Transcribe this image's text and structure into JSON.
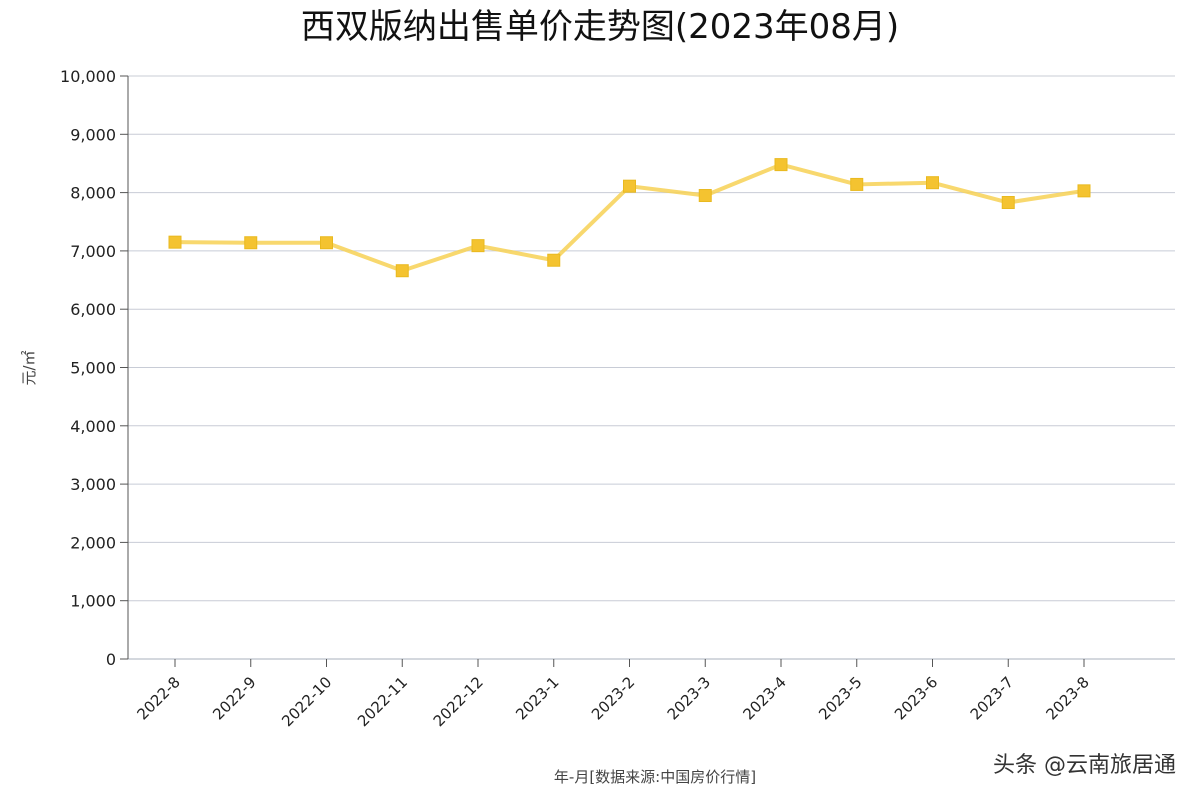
{
  "chart_data": {
    "type": "line",
    "title": "西双版纳出售单价走势图(2023年08月)",
    "xlabel": "年-月[数据来源:中国房价行情]",
    "ylabel": "元/㎡",
    "categories": [
      "2022-8",
      "2022-9",
      "2022-10",
      "2022-11",
      "2022-12",
      "2023-1",
      "2023-2",
      "2023-3",
      "2023-4",
      "2023-5",
      "2023-6",
      "2023-7",
      "2023-8"
    ],
    "series": [
      {
        "values": [
          7150,
          7140,
          7140,
          6660,
          7090,
          6840,
          8110,
          7950,
          8480,
          8140,
          8170,
          7830,
          8030
        ]
      }
    ],
    "ylim": [
      0,
      10000
    ],
    "yticks": [
      "0",
      "1,000",
      "2,000",
      "3,000",
      "4,000",
      "5,000",
      "6,000",
      "7,000",
      "8,000",
      "9,000",
      "10,000"
    ],
    "grid": true,
    "line_color": "#f7d155",
    "marker_color": "#f4c330"
  },
  "watermark": {
    "text": "头条 @云南旅居通"
  }
}
